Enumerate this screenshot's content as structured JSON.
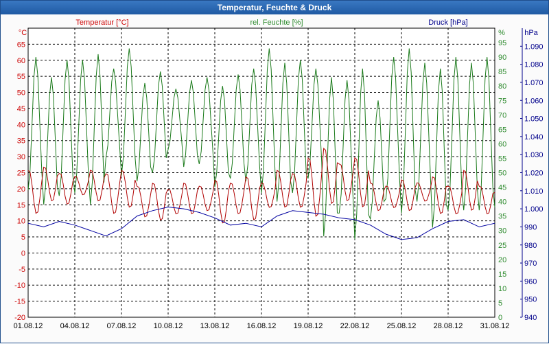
{
  "window": {
    "title": "Temperatur, Feuchte & Druck"
  },
  "chart_data": {
    "type": "line",
    "title": "Temperatur, Feuchte & Druck",
    "grid": true,
    "x": {
      "tick_labels": [
        "01.08.12",
        "04.08.12",
        "07.08.12",
        "10.08.12",
        "13.08.12",
        "16.08.12",
        "19.08.12",
        "22.08.12",
        "25.08.12",
        "28.08.12",
        "31.08.12"
      ],
      "range": [
        "01.08.12",
        "31.08.12"
      ]
    },
    "axes": {
      "temperature": {
        "label": "Temperatur [°C]",
        "unit_label": "°C",
        "ylim": [
          -20,
          70
        ],
        "ticks": [
          -20,
          -15,
          -10,
          -5,
          0,
          5,
          10,
          15,
          20,
          25,
          30,
          35,
          40,
          45,
          50,
          55,
          60,
          65
        ],
        "color": "#cc0000",
        "side": "left"
      },
      "humidity": {
        "label": "rel. Feuchte [%]",
        "unit_label": "%",
        "ylim": [
          0,
          100
        ],
        "ticks": [
          0,
          5,
          10,
          15,
          20,
          25,
          30,
          35,
          40,
          45,
          50,
          55,
          60,
          65,
          70,
          75,
          80,
          85,
          90,
          95
        ],
        "color": "#2e8b2e",
        "side": "right"
      },
      "pressure": {
        "label": "Druck [hPa]",
        "unit_label": "hPa",
        "ylim": [
          940,
          1100
        ],
        "ticks": [
          "940",
          "950",
          "960",
          "970",
          "980",
          "990",
          "1.000",
          "1.010",
          "1.020",
          "1.030",
          "1.040",
          "1.050",
          "1.060",
          "1.070",
          "1.080",
          "1.090"
        ],
        "color": "#00008b",
        "side": "right"
      }
    },
    "series": [
      {
        "name": "Temperatur [°C]",
        "axis": "temperature",
        "color": "#b00000",
        "day_min": [
          12,
          16,
          15,
          18,
          16,
          12,
          14,
          11,
          10,
          12,
          12,
          13,
          9,
          12,
          10,
          14,
          14,
          14,
          11,
          15,
          16,
          14,
          13,
          14,
          13,
          16,
          12,
          12,
          13,
          12,
          13
        ],
        "day_max": [
          26,
          27,
          25,
          24,
          26,
          25,
          26,
          21,
          22,
          20,
          22,
          21,
          23,
          22,
          24,
          22,
          26,
          25,
          30,
          33,
          28,
          30,
          22,
          21,
          23,
          22,
          24,
          21,
          26,
          21,
          19
        ]
      },
      {
        "name": "rel. Feuchte [%]",
        "axis": "humidity",
        "color": "#1a7a1a",
        "day_min": [
          44,
          39,
          42,
          43,
          39,
          55,
          49,
          47,
          50,
          58,
          52,
          53,
          45,
          48,
          47,
          43,
          40,
          43,
          48,
          28,
          36,
          27,
          34,
          41,
          36,
          40,
          31,
          37,
          37,
          37,
          38
        ],
        "day_max": [
          90,
          83,
          89,
          89,
          91,
          86,
          93,
          81,
          85,
          79,
          82,
          83,
          80,
          84,
          86,
          93,
          88,
          89,
          86,
          83,
          82,
          86,
          75,
          90,
          93,
          88,
          86,
          90,
          88,
          90,
          90
        ]
      },
      {
        "name": "Druck [hPa]",
        "axis": "pressure",
        "color": "#0000a0",
        "days": [
          1,
          2,
          3,
          4,
          5,
          6,
          7,
          8,
          9,
          10,
          11,
          12,
          13,
          14,
          15,
          16,
          17,
          18,
          19,
          20,
          21,
          22,
          23,
          24,
          25,
          26,
          27,
          28,
          29,
          30,
          31
        ],
        "values": [
          992,
          990,
          993,
          991,
          988,
          985,
          989,
          996,
          999,
          1001,
          1000,
          998,
          995,
          991,
          992,
          990,
          996,
          999,
          998,
          997,
          995,
          994,
          991,
          986,
          983,
          984,
          989,
          993,
          994,
          990,
          992
        ]
      }
    ]
  }
}
